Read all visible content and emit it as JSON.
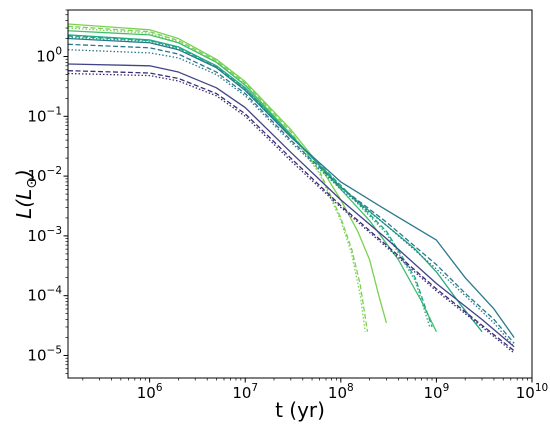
{
  "chart_data": {
    "type": "line",
    "title": "",
    "xlabel": "t (yr)",
    "ylabel": "L(L_⊙)",
    "x_scale": "log",
    "y_scale": "log",
    "xlim": [
      140000,
      10000000000
    ],
    "ylim": [
      4.2e-06,
      6.0
    ],
    "grid": false,
    "legend": "none",
    "x_ticks": [
      {
        "value": 1000000,
        "base": "10",
        "exp": "6"
      },
      {
        "value": 10000000,
        "base": "10",
        "exp": "7"
      },
      {
        "value": 100000000,
        "base": "10",
        "exp": "8"
      },
      {
        "value": 1000000000,
        "base": "10",
        "exp": "9"
      },
      {
        "value": 10000000000,
        "base": "10",
        "exp": "10"
      }
    ],
    "y_ticks": [
      {
        "value": 1e-05,
        "base": "10",
        "exp": "−5"
      },
      {
        "value": 0.0001,
        "base": "10",
        "exp": "−4"
      },
      {
        "value": 0.001,
        "base": "10",
        "exp": "−3"
      },
      {
        "value": 0.01,
        "base": "10",
        "exp": "−2"
      },
      {
        "value": 0.1,
        "base": "10",
        "exp": "−1"
      },
      {
        "value": 1,
        "base": "10",
        "exp": "0"
      }
    ],
    "series": [
      {
        "color": "#7ad151",
        "style": "solid",
        "x": [
          140000,
          1000000,
          2000000,
          5000000,
          10000000,
          30000000,
          60000000,
          100000000,
          150000000,
          200000000,
          250000000,
          300000000
        ],
        "y": [
          3.5,
          2.8,
          2.0,
          0.9,
          0.38,
          0.06,
          0.015,
          0.004,
          0.0012,
          0.0004,
          0.0001,
          3.5e-05
        ]
      },
      {
        "color": "#7ad151",
        "style": "dashed",
        "x": [
          140000,
          1000000,
          2000000,
          5000000,
          10000000,
          30000000,
          60000000,
          100000000,
          130000000,
          160000000,
          190000000
        ],
        "y": [
          3.2,
          2.6,
          1.85,
          0.85,
          0.36,
          0.055,
          0.012,
          0.002,
          0.0006,
          0.00015,
          2.5e-05
        ]
      },
      {
        "color": "#7ad151",
        "style": "dotted",
        "x": [
          140000,
          1000000,
          2000000,
          5000000,
          10000000,
          30000000,
          60000000,
          100000000,
          130000000,
          160000000,
          180000000
        ],
        "y": [
          3.0,
          2.45,
          1.75,
          0.8,
          0.34,
          0.05,
          0.011,
          0.0018,
          0.0005,
          0.0001,
          2.5e-05
        ]
      },
      {
        "color": "#44bf70",
        "style": "solid",
        "x": [
          140000,
          1000000,
          2000000,
          5000000,
          10000000,
          30000000,
          100000000,
          200000000,
          400000000,
          700000000,
          1000000000
        ],
        "y": [
          2.7,
          2.3,
          1.7,
          0.8,
          0.33,
          0.05,
          0.006,
          0.0018,
          0.0004,
          8e-05,
          2.5e-05
        ]
      },
      {
        "color": "#22a884",
        "style": "solid",
        "x": [
          140000,
          1000000,
          2000000,
          5000000,
          10000000,
          30000000,
          100000000,
          300000000,
          600000000,
          1000000000,
          1800000000,
          3000000000
        ],
        "y": [
          2.3,
          1.9,
          1.45,
          0.7,
          0.3,
          0.048,
          0.0065,
          0.0015,
          0.0006,
          0.00025,
          7e-05,
          2.5e-05
        ]
      },
      {
        "color": "#22a884",
        "style": "dashed",
        "x": [
          140000,
          1000000,
          2000000,
          5000000,
          10000000,
          30000000,
          100000000,
          300000000,
          600000000,
          900000000
        ],
        "y": [
          2.2,
          1.85,
          1.4,
          0.68,
          0.29,
          0.047,
          0.007,
          0.0012,
          0.0002,
          3e-05
        ]
      },
      {
        "color": "#22a884",
        "style": "dotted",
        "x": [
          140000,
          1000000,
          2000000,
          5000000,
          10000000,
          30000000,
          100000000,
          300000000,
          600000000,
          850000000
        ],
        "y": [
          2.1,
          1.8,
          1.35,
          0.66,
          0.28,
          0.046,
          0.0068,
          0.0011,
          0.00018,
          3e-05
        ]
      },
      {
        "color": "#2a788e",
        "style": "solid",
        "x": [
          140000,
          1000000,
          2000000,
          5000000,
          10000000,
          30000000,
          100000000,
          300000000,
          700000000,
          1000000000,
          2000000000,
          4000000000,
          6500000000
        ],
        "y": [
          2.0,
          1.7,
          1.3,
          0.65,
          0.27,
          0.045,
          0.008,
          0.0027,
          0.0012,
          0.00085,
          0.0002,
          6e-05,
          2e-05
        ]
      },
      {
        "color": "#2a788e",
        "style": "dashed",
        "x": [
          140000,
          1000000,
          2000000,
          5000000,
          10000000,
          30000000,
          100000000,
          300000000,
          1000000000,
          2000000000,
          4000000000,
          6500000000
        ],
        "y": [
          1.6,
          1.4,
          1.1,
          0.55,
          0.24,
          0.04,
          0.0065,
          0.0017,
          0.00033,
          0.00011,
          4e-05,
          1.6e-05
        ]
      },
      {
        "color": "#2a788e",
        "style": "dotted",
        "x": [
          140000,
          1000000,
          2000000,
          5000000,
          10000000,
          30000000,
          100000000,
          300000000,
          1000000000,
          2000000000,
          4000000000,
          6500000000
        ],
        "y": [
          1.3,
          1.15,
          0.95,
          0.5,
          0.22,
          0.037,
          0.006,
          0.0015,
          0.00028,
          0.0001,
          3.5e-05,
          1.4e-05
        ]
      },
      {
        "color": "#414487",
        "style": "solid",
        "x": [
          140000,
          1000000,
          2000000,
          5000000,
          10000000,
          30000000,
          100000000,
          300000000,
          1000000000,
          3000000000,
          6500000000
        ],
        "y": [
          0.75,
          0.7,
          0.55,
          0.3,
          0.14,
          0.025,
          0.004,
          0.0009,
          0.00016,
          4e-05,
          1.4e-05
        ]
      },
      {
        "color": "#3b2d7a",
        "style": "dashed",
        "x": [
          140000,
          1000000,
          2000000,
          5000000,
          10000000,
          30000000,
          100000000,
          300000000,
          1000000000,
          3000000000,
          6500000000
        ],
        "y": [
          0.58,
          0.53,
          0.43,
          0.24,
          0.11,
          0.02,
          0.0032,
          0.0007,
          0.00013,
          3.2e-05,
          1.2e-05
        ]
      },
      {
        "color": "#3b2d7a",
        "style": "dotted",
        "x": [
          140000,
          1000000,
          2000000,
          5000000,
          10000000,
          30000000,
          100000000,
          300000000,
          1000000000,
          3000000000,
          6500000000
        ],
        "y": [
          0.52,
          0.48,
          0.39,
          0.22,
          0.1,
          0.018,
          0.003,
          0.00065,
          0.00012,
          3e-05,
          1.1e-05
        ]
      }
    ]
  }
}
